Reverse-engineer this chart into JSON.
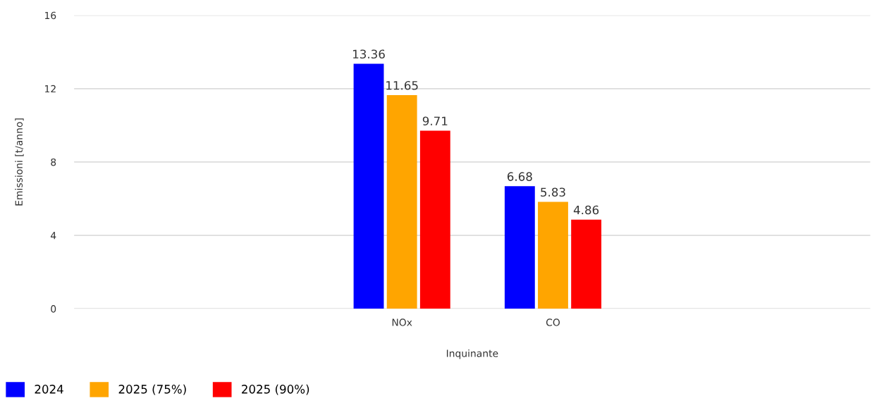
{
  "chart_data": {
    "type": "bar",
    "xlabel": "Inquinante",
    "ylabel": "Emissioni [t/anno]",
    "categories": [
      "NOx",
      "CO"
    ],
    "series": [
      {
        "name": "2024",
        "color": "#0000ff",
        "values": [
          13.36,
          6.68
        ]
      },
      {
        "name": "2025 (75%)",
        "color": "#ffa500",
        "values": [
          11.65,
          5.83
        ]
      },
      {
        "name": "2025 (90%)",
        "color": "#ff0000",
        "values": [
          9.71,
          4.86
        ]
      }
    ],
    "ylim": [
      0,
      16
    ],
    "yticks": [
      0,
      4,
      8,
      12,
      16
    ],
    "grid": "y",
    "legend": "bottom left",
    "data_labels": true
  }
}
